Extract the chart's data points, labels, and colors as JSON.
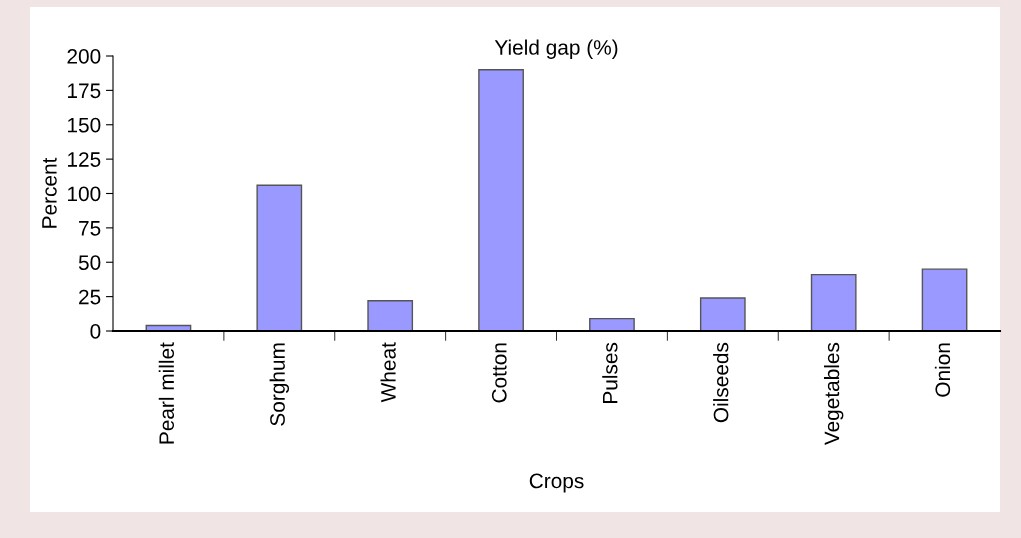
{
  "chart_data": {
    "type": "bar",
    "title": "Yield gap (%)",
    "xlabel": "Crops",
    "ylabel": "Percent",
    "categories": [
      "Pearl millet",
      "Sorghum",
      "Wheat",
      "Cotton",
      "Pulses",
      "Oilseeds",
      "Vegetables",
      "Onion"
    ],
    "values": [
      4,
      106,
      22,
      190,
      9,
      24,
      41,
      45
    ],
    "color": "#9999ff",
    "ylim": [
      0,
      200
    ],
    "yticks": [
      0,
      25,
      50,
      75,
      100,
      125,
      150,
      175,
      200
    ],
    "grid": false,
    "legend": false
  }
}
